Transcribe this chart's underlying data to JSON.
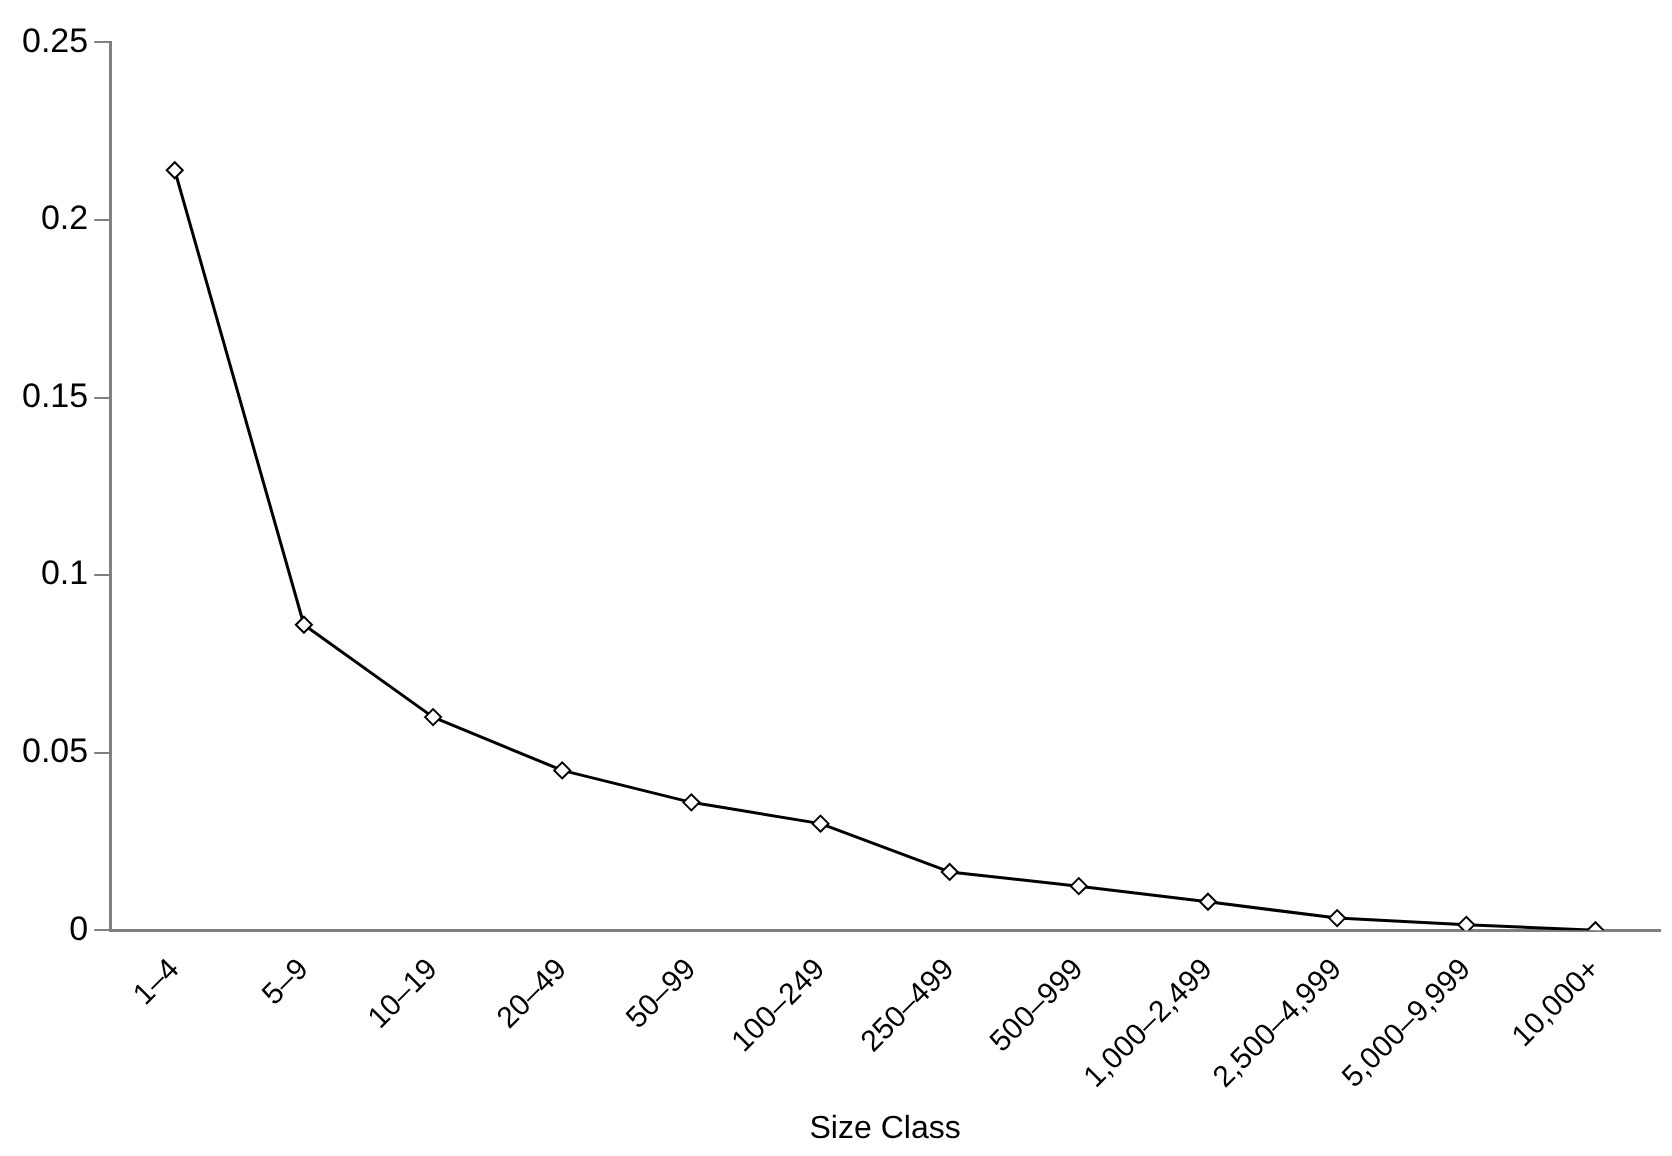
{
  "chart_data": {
    "type": "line",
    "xlabel": "Size Class",
    "categories": [
      "1–4",
      "5–9",
      "10–19",
      "20–49",
      "50–99",
      "100–249",
      "250–499",
      "500–999",
      "1,000–2,499",
      "2,500–4,999",
      "5,000–9,999",
      "10,000+"
    ],
    "series": [
      {
        "color": "#000000",
        "values": [
          0.214,
          0.086,
          0.06,
          0.045,
          0.036,
          0.03,
          0.0164,
          0.0124,
          0.008,
          0.0034,
          0.0015,
          0
        ]
      }
    ],
    "ylim": [
      0,
      0.25
    ],
    "yticks": [
      0,
      0.05,
      0.1,
      0.15,
      0.2,
      0.25
    ],
    "grid": false,
    "legend": false,
    "marker": "diamond",
    "line_style": "solid"
  }
}
